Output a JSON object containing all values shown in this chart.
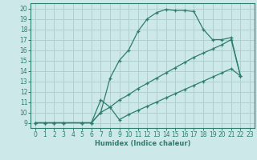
{
  "xlabel": "Humidex (Indice chaleur)",
  "bg_color": "#cce8e8",
  "grid_color": "#b0d0d0",
  "line_color": "#2e7d6e",
  "xlim": [
    -0.5,
    23.5
  ],
  "ylim": [
    8.5,
    20.5
  ],
  "xticks": [
    0,
    1,
    2,
    3,
    4,
    5,
    6,
    7,
    8,
    9,
    10,
    11,
    12,
    13,
    14,
    15,
    16,
    17,
    18,
    19,
    20,
    21,
    22,
    23
  ],
  "yticks": [
    9,
    10,
    11,
    12,
    13,
    14,
    15,
    16,
    17,
    18,
    19,
    20
  ],
  "line1_x": [
    0,
    1,
    2,
    3,
    5,
    6,
    7,
    8,
    9,
    10,
    11,
    12,
    13,
    14,
    15,
    16,
    17,
    18,
    19,
    20,
    21,
    22
  ],
  "line1_y": [
    9,
    9,
    9,
    9,
    9,
    9,
    10,
    13.3,
    15,
    16,
    17.8,
    19.0,
    19.6,
    19.9,
    19.8,
    19.8,
    19.7,
    18.0,
    17.0,
    17.0,
    17.2,
    13.5
  ],
  "line2_x": [
    0,
    1,
    2,
    3,
    5,
    6,
    7,
    8,
    9,
    10,
    11,
    12,
    13,
    14,
    15,
    16,
    17,
    18,
    19,
    20,
    21,
    22
  ],
  "line2_y": [
    9,
    9,
    9,
    9,
    9,
    9,
    10,
    10.5,
    11.2,
    11.7,
    12.3,
    12.8,
    13.3,
    13.8,
    14.3,
    14.8,
    15.3,
    15.7,
    16.1,
    16.5,
    17.0,
    13.5
  ],
  "line3_x": [
    0,
    1,
    2,
    3,
    5,
    6,
    7,
    8,
    9,
    10,
    11,
    12,
    13,
    14,
    15,
    16,
    17,
    18,
    19,
    20,
    21,
    22
  ],
  "line3_y": [
    9,
    9,
    9,
    9,
    9,
    9,
    11.2,
    10.5,
    9.3,
    9.8,
    10.2,
    10.6,
    11.0,
    11.4,
    11.8,
    12.2,
    12.6,
    13.0,
    13.4,
    13.8,
    14.2,
    13.5
  ]
}
